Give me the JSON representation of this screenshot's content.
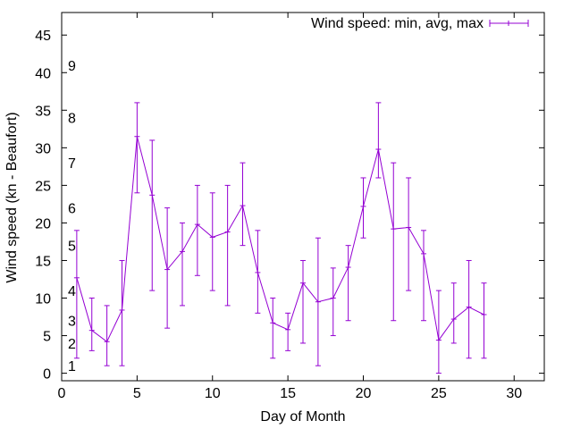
{
  "chart_data": {
    "type": "line",
    "title": "",
    "xlabel": "Day of Month",
    "ylabel": "Wind speed (kn - Beaufort)",
    "xlim": [
      0,
      32
    ],
    "ylim": [
      -1,
      48
    ],
    "xticks": [
      0,
      5,
      10,
      15,
      20,
      25,
      30
    ],
    "yticks": [
      0,
      5,
      10,
      15,
      20,
      25,
      30,
      35,
      40,
      45
    ],
    "grid": false,
    "legend_position": "top-right",
    "beaufort_labels": [
      {
        "label": "1",
        "value": 1
      },
      {
        "label": "2",
        "value": 4
      },
      {
        "label": "3",
        "value": 7
      },
      {
        "label": "4",
        "value": 11
      },
      {
        "label": "5",
        "value": 17
      },
      {
        "label": "6",
        "value": 22
      },
      {
        "label": "7",
        "value": 28
      },
      {
        "label": "8",
        "value": 34
      },
      {
        "label": "9",
        "value": 41
      }
    ],
    "series": [
      {
        "name": "Wind speed: min, avg, max",
        "color": "#9400d3",
        "x": [
          1,
          2,
          3,
          4,
          5,
          6,
          7,
          8,
          9,
          10,
          11,
          12,
          13,
          14,
          15,
          16,
          17,
          18,
          19,
          20,
          21,
          22,
          23,
          24,
          25,
          26,
          27,
          28
        ],
        "avg": [
          12.7,
          5.7,
          4.2,
          8.4,
          31.5,
          23.7,
          13.8,
          16.2,
          19.8,
          18.1,
          18.8,
          22.3,
          13.4,
          6.7,
          5.8,
          12.0,
          9.5,
          10.0,
          14.1,
          22.2,
          29.8,
          19.2,
          19.4,
          15.9,
          4.4,
          7.2,
          8.8,
          7.8
        ],
        "min": [
          2,
          3,
          1,
          1,
          24,
          11,
          6,
          9,
          13,
          11,
          9,
          17,
          8,
          2,
          3,
          4,
          1,
          5,
          7,
          18,
          26,
          7,
          11,
          7,
          0,
          4,
          2,
          2
        ],
        "max": [
          19,
          10,
          9,
          15,
          36,
          31,
          22,
          20,
          25,
          24,
          25,
          28,
          19,
          10,
          8,
          15,
          18,
          14,
          17,
          26,
          36,
          28,
          26,
          19,
          11,
          12,
          15,
          12
        ]
      }
    ]
  }
}
